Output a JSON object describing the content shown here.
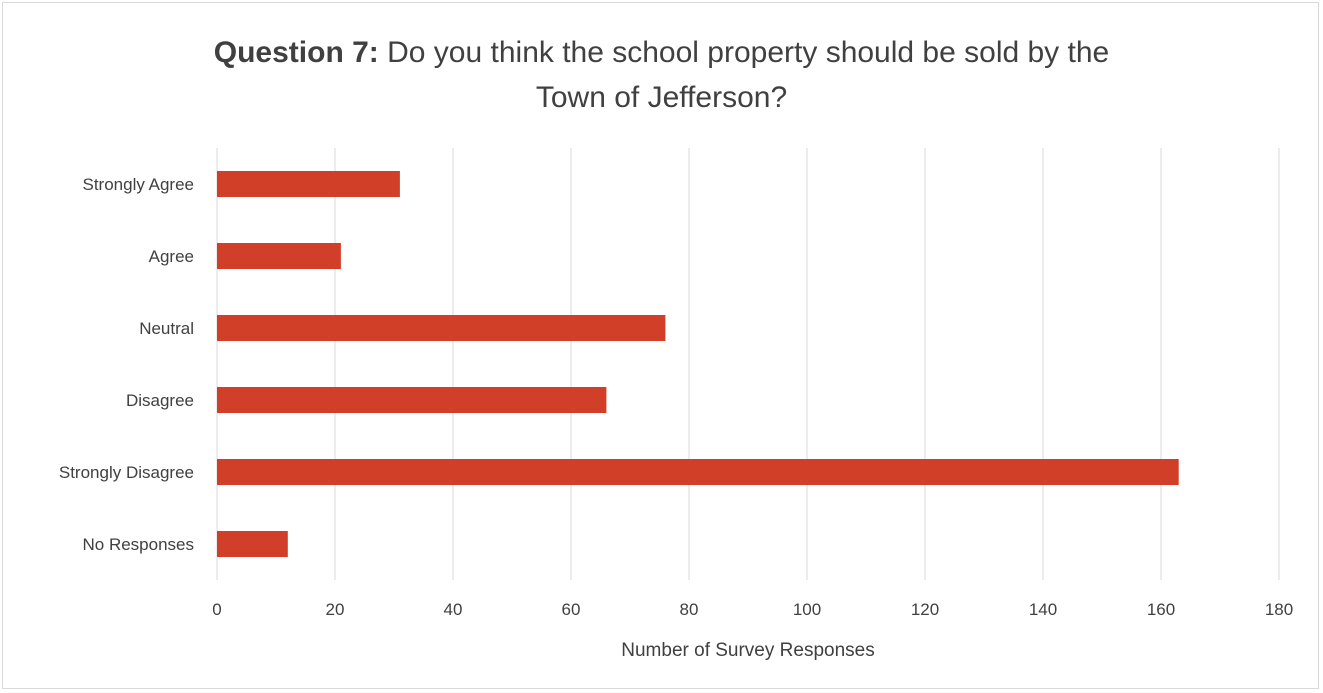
{
  "chart_data": {
    "type": "bar",
    "orientation": "horizontal",
    "title_bold": "Question 7:",
    "title_rest": " Do you think the school property should be sold by the",
    "title_line2": "Town of Jefferson?",
    "xlabel": "Number of Survey Responses",
    "ylabel": "",
    "categories": [
      "Strongly Agree",
      "Agree",
      "Neutral",
      "Disagree",
      "Strongly Disagree",
      "No Responses"
    ],
    "values": [
      31,
      21,
      76,
      66,
      163,
      12
    ],
    "xlim": [
      0,
      180
    ],
    "xticks": [
      0,
      20,
      40,
      60,
      80,
      100,
      120,
      140,
      160,
      180
    ],
    "grid": "vertical",
    "legend": "none",
    "bar_color": "#d13f29",
    "grid_color": "#d9d9d9"
  }
}
